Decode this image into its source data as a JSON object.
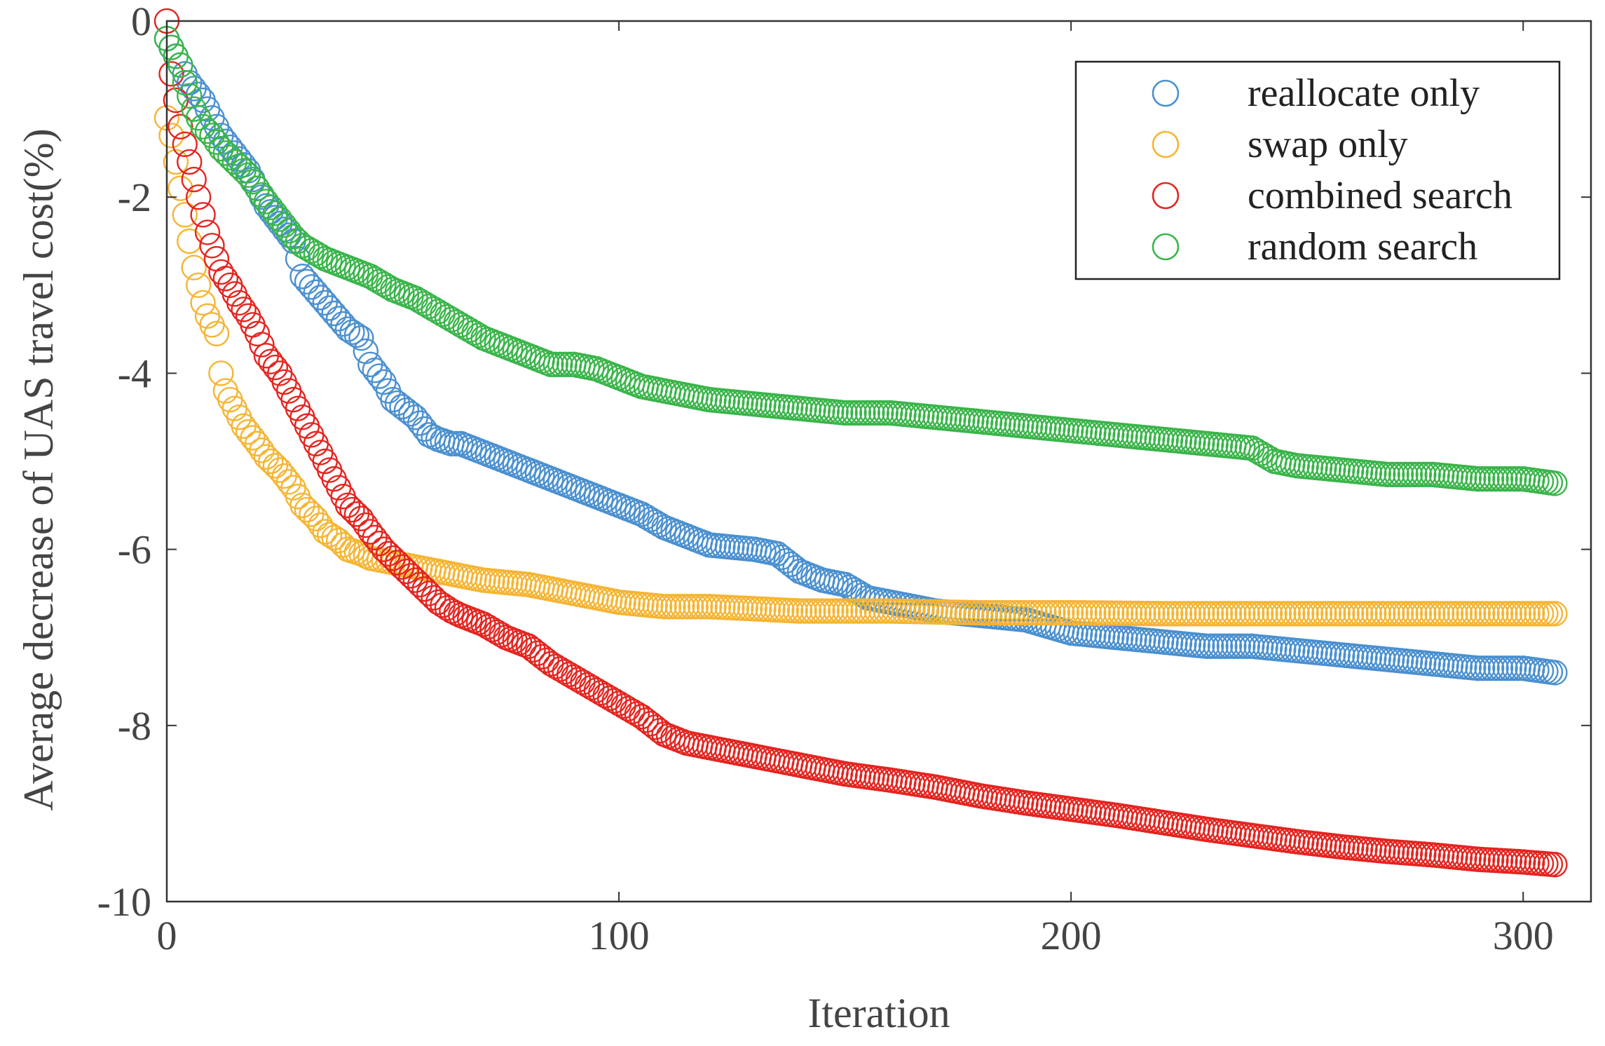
{
  "chart_data": {
    "type": "scatter",
    "title": "",
    "xlabel": "Iteration",
    "ylabel": "Average decrease of UAS travel cost(%)",
    "xlim": [
      0,
      315
    ],
    "ylim": [
      -10,
      0
    ],
    "xticks": [
      0,
      100,
      200,
      300
    ],
    "xtick_labels": [
      "0",
      "100",
      "200",
      "300"
    ],
    "yticks": [
      0,
      -2,
      -4,
      -6,
      -8,
      -10
    ],
    "ytick_labels": [
      "0",
      "-2",
      "-4",
      "-6",
      "-8",
      "-10"
    ],
    "marker": "open-circle",
    "grid": false,
    "legend_position": "top-right",
    "series": [
      {
        "name": "reallocate only",
        "color": "#4a90d0",
        "x": [
          0,
          1,
          3,
          5,
          8,
          10,
          12,
          15,
          18,
          20,
          22,
          25,
          28,
          30,
          35,
          40,
          43,
          45,
          48,
          50,
          55,
          58,
          60,
          63,
          65,
          70,
          75,
          80,
          85,
          90,
          95,
          100,
          105,
          110,
          115,
          120,
          130,
          135,
          140,
          145,
          150,
          155,
          160,
          170,
          180,
          190,
          200,
          210,
          220,
          230,
          240,
          250,
          260,
          270,
          280,
          290,
          300,
          307
        ],
        "y": [
          -0.2,
          -0.3,
          -0.5,
          -0.7,
          -0.9,
          -1.1,
          -1.3,
          -1.5,
          -1.7,
          -1.9,
          -2.1,
          -2.3,
          -2.5,
          -2.9,
          -3.2,
          -3.5,
          -3.6,
          -3.9,
          -4.1,
          -4.3,
          -4.5,
          -4.7,
          -4.75,
          -4.8,
          -4.8,
          -4.9,
          -5.0,
          -5.1,
          -5.2,
          -5.3,
          -5.4,
          -5.5,
          -5.6,
          -5.75,
          -5.85,
          -5.95,
          -6.0,
          -6.05,
          -6.25,
          -6.35,
          -6.4,
          -6.55,
          -6.6,
          -6.7,
          -6.75,
          -6.8,
          -6.95,
          -7.0,
          -7.05,
          -7.1,
          -7.1,
          -7.15,
          -7.2,
          -7.25,
          -7.3,
          -7.35,
          -7.35,
          -7.4
        ]
      },
      {
        "name": "swap only",
        "color": "#f5b533",
        "x": [
          0,
          1,
          2,
          3,
          4,
          5,
          6,
          7,
          8,
          9,
          10,
          11,
          12,
          13,
          14,
          15,
          17,
          20,
          22,
          25,
          28,
          30,
          33,
          35,
          38,
          40,
          43,
          45,
          50,
          55,
          60,
          70,
          80,
          90,
          100,
          110,
          120,
          140,
          160,
          180,
          200,
          220,
          250,
          270,
          300,
          307
        ],
        "y": [
          -1.1,
          -1.3,
          -1.6,
          -1.9,
          -2.2,
          -2.5,
          -2.8,
          -3.0,
          -3.2,
          -3.35,
          -3.45,
          -3.55,
          -4.0,
          -4.2,
          -4.3,
          -4.4,
          -4.6,
          -4.8,
          -4.95,
          -5.1,
          -5.3,
          -5.5,
          -5.65,
          -5.8,
          -5.9,
          -6.0,
          -6.05,
          -6.1,
          -6.15,
          -6.2,
          -6.25,
          -6.35,
          -6.4,
          -6.5,
          -6.6,
          -6.65,
          -6.65,
          -6.7,
          -6.7,
          -6.72,
          -6.72,
          -6.73,
          -6.73,
          -6.73,
          -6.73,
          -6.73
        ]
      },
      {
        "name": "combined search",
        "color": "#e42520",
        "x": [
          0,
          1,
          2,
          3,
          4,
          5,
          6,
          7,
          8,
          9,
          10,
          11,
          12,
          14,
          16,
          18,
          20,
          22,
          25,
          28,
          30,
          33,
          35,
          38,
          40,
          43,
          45,
          48,
          50,
          53,
          55,
          58,
          60,
          63,
          65,
          70,
          75,
          80,
          85,
          90,
          95,
          100,
          105,
          110,
          115,
          120,
          130,
          140,
          150,
          160,
          170,
          180,
          190,
          200,
          210,
          220,
          230,
          240,
          250,
          260,
          270,
          280,
          290,
          300,
          307
        ],
        "y": [
          0,
          -0.6,
          -0.9,
          -1.2,
          -1.4,
          -1.6,
          -1.8,
          -2.0,
          -2.2,
          -2.4,
          -2.55,
          -2.7,
          -2.85,
          -3.0,
          -3.2,
          -3.35,
          -3.55,
          -3.8,
          -4.0,
          -4.3,
          -4.5,
          -4.8,
          -5.0,
          -5.3,
          -5.5,
          -5.65,
          -5.8,
          -6.0,
          -6.1,
          -6.25,
          -6.35,
          -6.5,
          -6.6,
          -6.7,
          -6.75,
          -6.85,
          -7.0,
          -7.1,
          -7.3,
          -7.45,
          -7.6,
          -7.75,
          -7.9,
          -8.1,
          -8.2,
          -8.25,
          -8.35,
          -8.45,
          -8.55,
          -8.62,
          -8.7,
          -8.8,
          -8.88,
          -8.95,
          -9.02,
          -9.1,
          -9.18,
          -9.25,
          -9.32,
          -9.38,
          -9.43,
          -9.47,
          -9.52,
          -9.55,
          -9.58
        ]
      },
      {
        "name": "random search",
        "color": "#3ab54a",
        "x": [
          0,
          1,
          2,
          3,
          4,
          5,
          6,
          7,
          8,
          10,
          12,
          15,
          18,
          20,
          22,
          25,
          28,
          30,
          35,
          40,
          45,
          50,
          55,
          60,
          65,
          70,
          75,
          80,
          85,
          90,
          95,
          100,
          105,
          110,
          115,
          120,
          130,
          140,
          150,
          160,
          170,
          180,
          190,
          200,
          210,
          220,
          230,
          240,
          245,
          250,
          260,
          270,
          280,
          290,
          300,
          307
        ],
        "y": [
          -0.2,
          -0.3,
          -0.4,
          -0.5,
          -0.7,
          -0.85,
          -1.0,
          -1.1,
          -1.2,
          -1.3,
          -1.45,
          -1.6,
          -1.75,
          -1.9,
          -2.05,
          -2.25,
          -2.45,
          -2.55,
          -2.7,
          -2.8,
          -2.9,
          -3.05,
          -3.15,
          -3.3,
          -3.45,
          -3.6,
          -3.7,
          -3.8,
          -3.9,
          -3.9,
          -3.95,
          -4.05,
          -4.15,
          -4.2,
          -4.25,
          -4.3,
          -4.35,
          -4.4,
          -4.45,
          -4.45,
          -4.5,
          -4.55,
          -4.6,
          -4.65,
          -4.7,
          -4.75,
          -4.8,
          -4.85,
          -5.0,
          -5.05,
          -5.1,
          -5.15,
          -5.15,
          -5.2,
          -5.2,
          -5.25
        ]
      }
    ]
  }
}
